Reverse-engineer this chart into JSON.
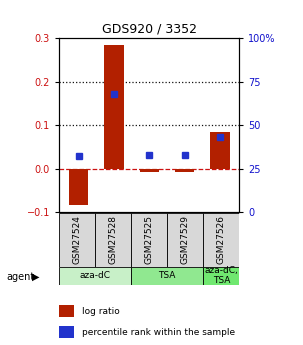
{
  "title": "GDS920 / 3352",
  "samples": [
    "GSM27524",
    "GSM27528",
    "GSM27525",
    "GSM27529",
    "GSM27526"
  ],
  "log_ratios": [
    -0.083,
    0.283,
    -0.008,
    -0.007,
    0.085
  ],
  "percentile_ranks_pct": [
    32,
    68,
    33,
    33,
    43
  ],
  "agents": [
    {
      "label": "aza-dC",
      "span": [
        0,
        2
      ],
      "color": "#c8f0c8"
    },
    {
      "label": "TSA",
      "span": [
        2,
        4
      ],
      "color": "#90e890"
    },
    {
      "label": "aza-dC,\nTSA",
      "span": [
        4,
        5
      ],
      "color": "#70e870"
    }
  ],
  "bar_color": "#b22000",
  "dot_color": "#2233cc",
  "ylim_left": [
    -0.1,
    0.3
  ],
  "ylim_right": [
    0,
    100
  ],
  "yticks_left": [
    -0.1,
    0.0,
    0.1,
    0.2,
    0.3
  ],
  "yticks_right": [
    0,
    25,
    50,
    75,
    100
  ],
  "background_color": "#ffffff",
  "legend_items": [
    {
      "color": "#b22000",
      "label": "log ratio"
    },
    {
      "color": "#2233cc",
      "label": "percentile rank within the sample"
    }
  ]
}
